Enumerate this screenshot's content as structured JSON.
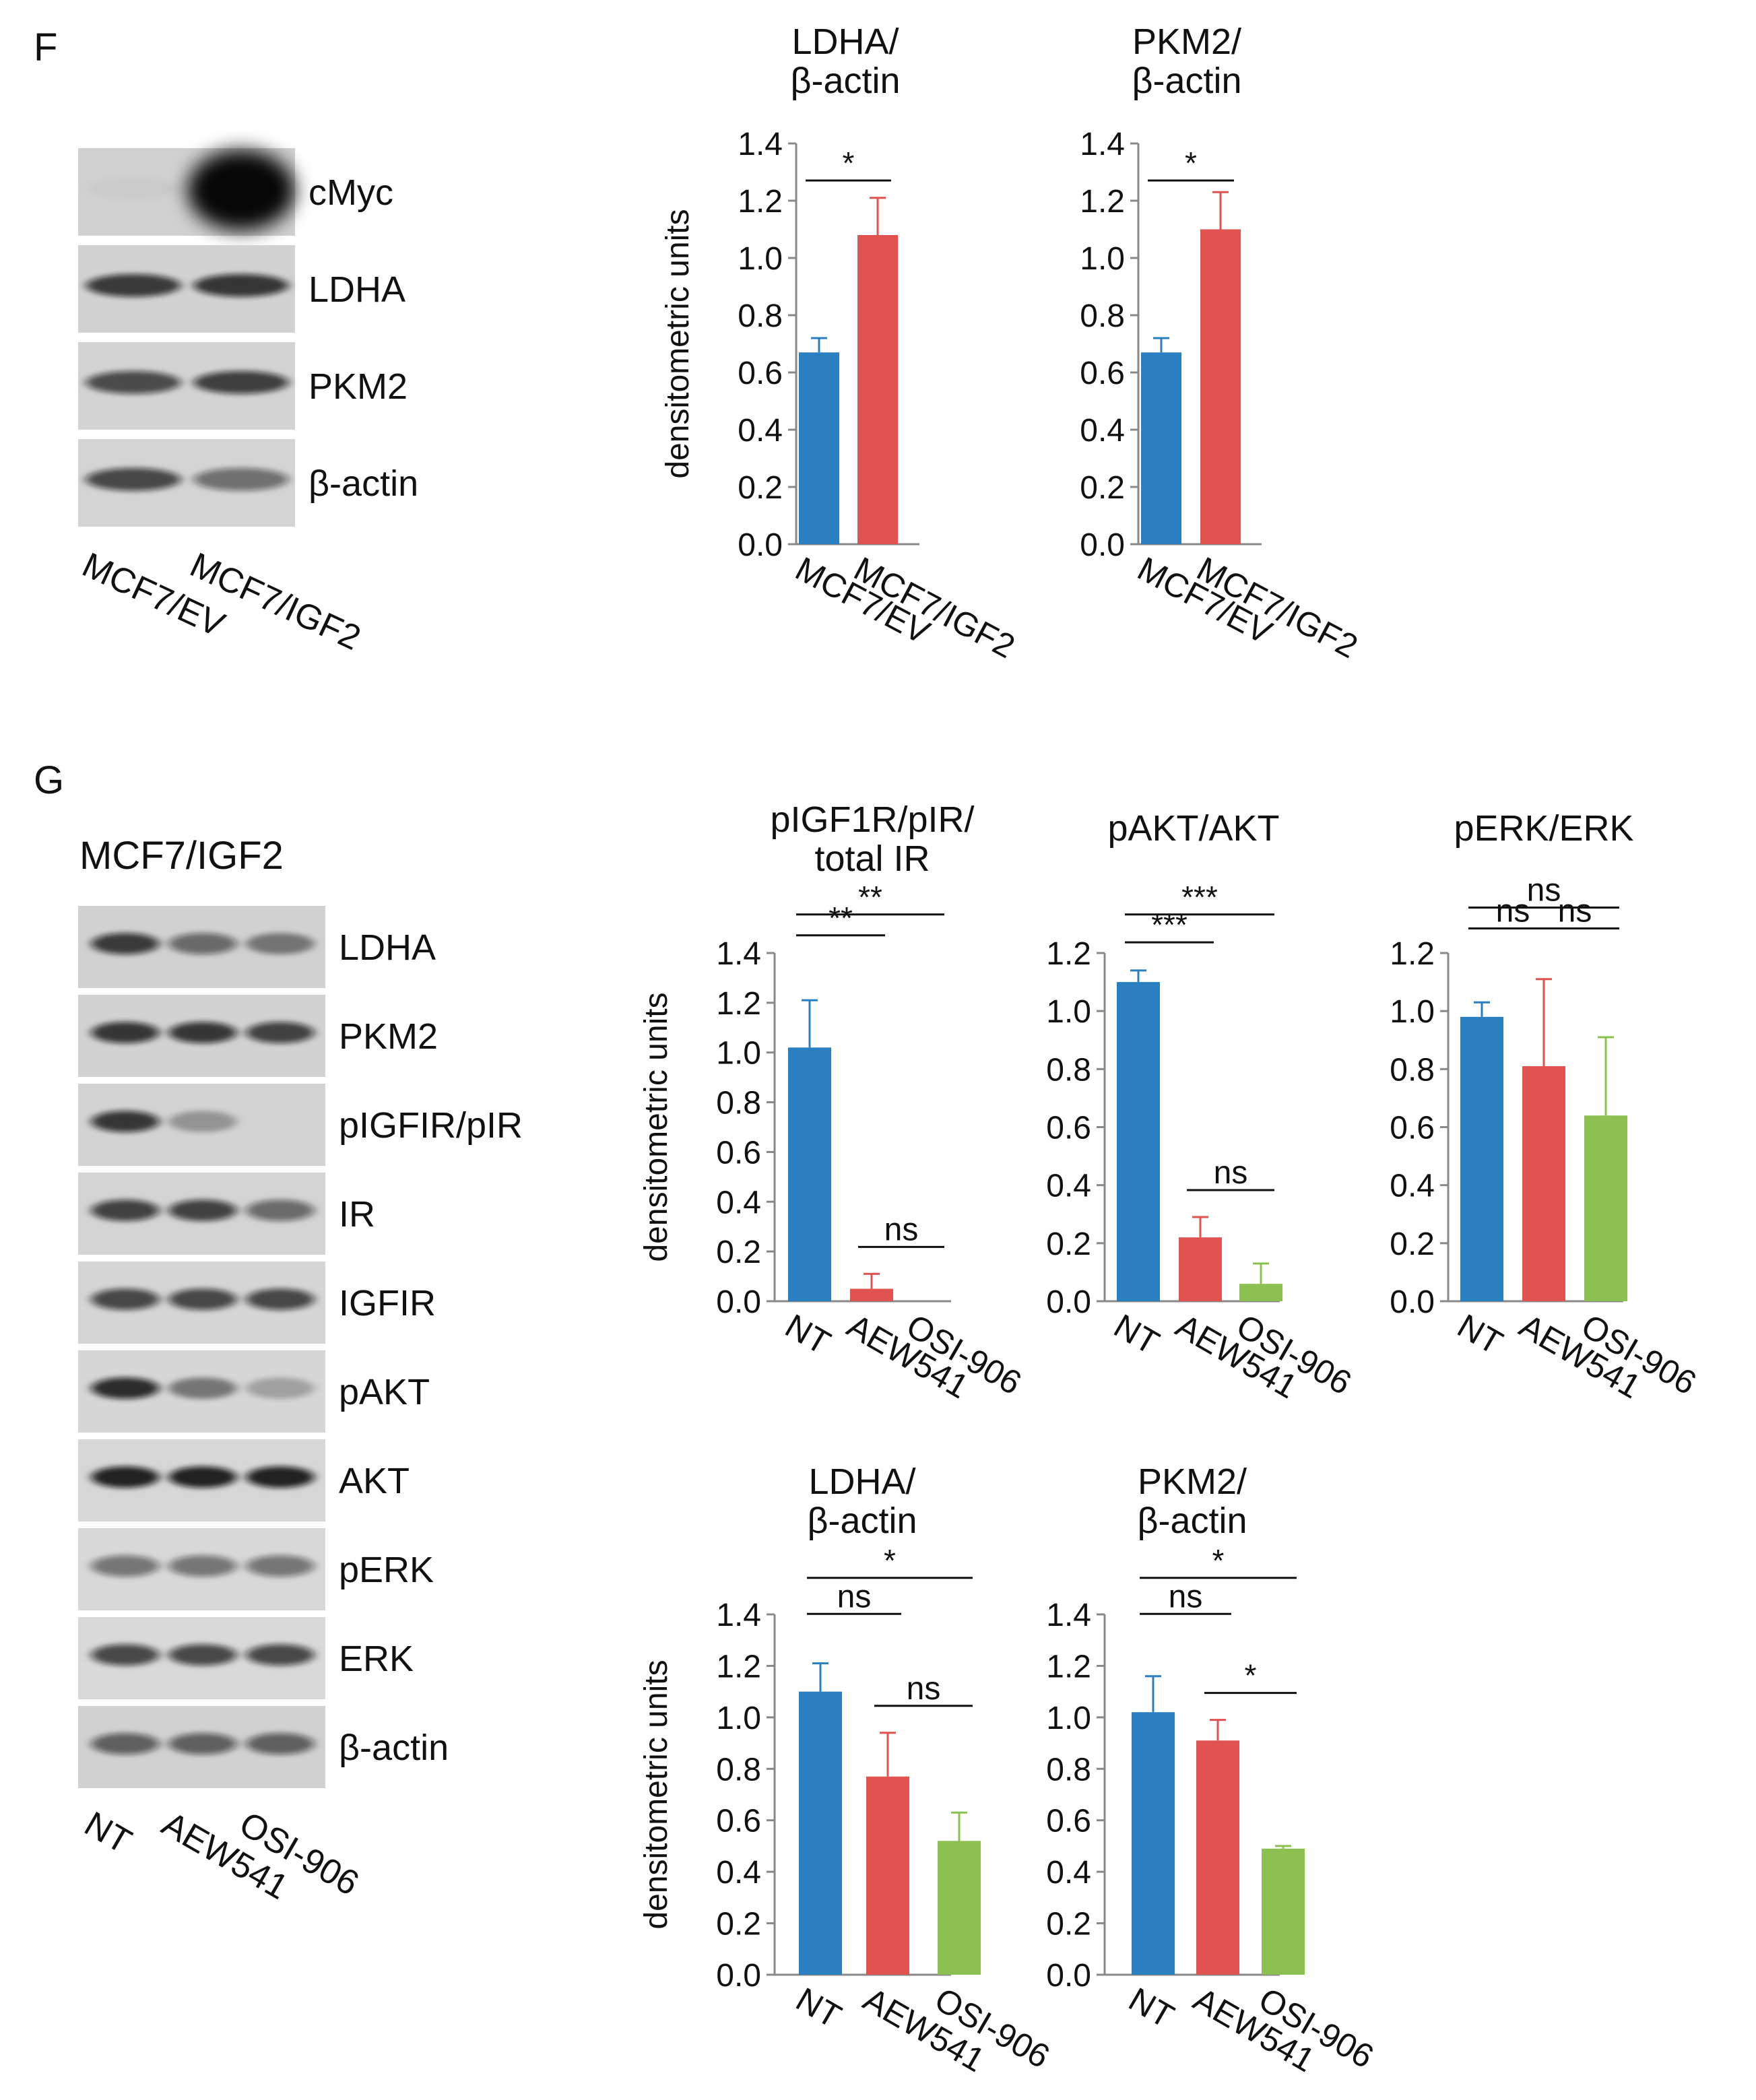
{
  "panels": {
    "F": {
      "label": "F",
      "blot": {
        "rows": [
          {
            "label": "cMyc",
            "intensity": [
              0.03,
              1.0
            ]
          },
          {
            "label": "LDHA",
            "intensity": [
              0.78,
              0.8
            ]
          },
          {
            "label": "PKM2",
            "intensity": [
              0.7,
              0.76
            ]
          },
          {
            "label": "β-actin",
            "intensity": [
              0.72,
              0.52
            ]
          }
        ],
        "lanes": [
          "MCF7/EV",
          "MCF7/IGF2"
        ]
      }
    },
    "G": {
      "label": "G",
      "blot": {
        "title": "MCF7/IGF2",
        "rows": [
          {
            "label": "LDHA",
            "intensity": [
              0.78,
              0.55,
              0.45
            ]
          },
          {
            "label": "PKM2",
            "intensity": [
              0.8,
              0.8,
              0.75
            ]
          },
          {
            "label": "pIGFIR/pIR",
            "intensity": [
              0.8,
              0.3,
              0.0
            ]
          },
          {
            "label": "IR",
            "intensity": [
              0.75,
              0.75,
              0.55
            ]
          },
          {
            "label": "IGFIR",
            "intensity": [
              0.72,
              0.72,
              0.72
            ]
          },
          {
            "label": "pAKT",
            "intensity": [
              0.85,
              0.45,
              0.25
            ]
          },
          {
            "label": "AKT",
            "intensity": [
              0.9,
              0.9,
              0.9
            ]
          },
          {
            "label": "pERK",
            "intensity": [
              0.5,
              0.5,
              0.5
            ]
          },
          {
            "label": "ERK",
            "intensity": [
              0.72,
              0.72,
              0.72
            ]
          },
          {
            "label": "β-actin",
            "intensity": [
              0.6,
              0.6,
              0.6
            ]
          }
        ],
        "lanes": [
          "NT",
          "AEW541",
          "OSI-906"
        ]
      }
    }
  },
  "colors": {
    "blue": "#2a7fc1",
    "red": "#e05350",
    "green": "#8cc152",
    "axis": "#888888"
  },
  "chart_data": [
    {
      "type": "bar",
      "panel": "F",
      "title_lines": [
        "LDHA/",
        "β-actin"
      ],
      "ylabel": "densitometric units",
      "categories": [
        "MCF7/EV",
        "MCF7/IGF2"
      ],
      "values": [
        0.67,
        1.08
      ],
      "errors": [
        0.05,
        0.13
      ],
      "ylim": [
        0,
        1.4
      ],
      "ticks": [
        "0.0",
        "0.2",
        "0.4",
        "0.6",
        "0.8",
        "1.0",
        "1.2",
        "1.4"
      ],
      "colors": [
        "blue",
        "red"
      ],
      "sig": [
        {
          "from": 0,
          "to": 1,
          "label": "*"
        }
      ]
    },
    {
      "type": "bar",
      "panel": "F",
      "title_lines": [
        "PKM2/",
        "β-actin"
      ],
      "ylabel": "",
      "categories": [
        "MCF7/EV",
        "MCF7/IGF2"
      ],
      "values": [
        0.67,
        1.1
      ],
      "errors": [
        0.05,
        0.13
      ],
      "ylim": [
        0,
        1.4
      ],
      "ticks": [
        "0.0",
        "0.2",
        "0.4",
        "0.6",
        "0.8",
        "1.0",
        "1.2",
        "1.4"
      ],
      "colors": [
        "blue",
        "red"
      ],
      "sig": [
        {
          "from": 0,
          "to": 1,
          "label": "*"
        }
      ]
    },
    {
      "type": "bar",
      "panel": "G",
      "title_lines": [
        "pIGF1R/pIR/",
        "total IR"
      ],
      "ylabel": "densitometric units",
      "categories": [
        "NT",
        "AEW541",
        "OSI-906"
      ],
      "values": [
        1.02,
        0.05,
        0.0
      ],
      "errors": [
        0.19,
        0.06,
        0.0
      ],
      "ylim": [
        0,
        1.4
      ],
      "ticks": [
        "0.0",
        "0.2",
        "0.4",
        "0.6",
        "0.8",
        "1.0",
        "1.2",
        "1.4"
      ],
      "colors": [
        "blue",
        "red",
        "green"
      ],
      "sig": [
        {
          "from": 0,
          "to": 1,
          "label": "**"
        },
        {
          "from": 0,
          "to": 2,
          "label": "**"
        },
        {
          "from": 1,
          "to": 2,
          "label": "ns"
        }
      ]
    },
    {
      "type": "bar",
      "panel": "G",
      "title_lines": [
        "pAKT/AKT"
      ],
      "ylabel": "",
      "categories": [
        "NT",
        "AEW541",
        "OSI-906"
      ],
      "values": [
        1.1,
        0.22,
        0.06
      ],
      "errors": [
        0.04,
        0.07,
        0.07
      ],
      "ylim": [
        0,
        1.2
      ],
      "ticks": [
        "0.0",
        "0.2",
        "0.4",
        "0.6",
        "0.8",
        "1.0",
        "1.2"
      ],
      "colors": [
        "blue",
        "red",
        "green"
      ],
      "sig": [
        {
          "from": 0,
          "to": 1,
          "label": "***"
        },
        {
          "from": 0,
          "to": 2,
          "label": "***"
        },
        {
          "from": 1,
          "to": 2,
          "label": "ns"
        }
      ]
    },
    {
      "type": "bar",
      "panel": "G",
      "title_lines": [
        "pERK/ERK"
      ],
      "ylabel": "",
      "categories": [
        "NT",
        "AEW541",
        "OSI-906"
      ],
      "values": [
        0.98,
        0.81,
        0.64
      ],
      "errors": [
        0.05,
        0.3,
        0.27
      ],
      "ylim": [
        0,
        1.2
      ],
      "ticks": [
        "0.0",
        "0.2",
        "0.4",
        "0.6",
        "0.8",
        "1.0",
        "1.2"
      ],
      "colors": [
        "blue",
        "red",
        "green"
      ],
      "sig": [
        {
          "from": 0,
          "to": 1,
          "label": "ns"
        },
        {
          "from": 0,
          "to": 2,
          "label": "ns"
        },
        {
          "from": 1,
          "to": 2,
          "label": "ns"
        }
      ]
    },
    {
      "type": "bar",
      "panel": "G",
      "title_lines": [
        "LDHA/",
        "β-actin"
      ],
      "ylabel": "densitometric units",
      "categories": [
        "NT",
        "AEW541",
        "OSI-906"
      ],
      "values": [
        1.1,
        0.77,
        0.52
      ],
      "errors": [
        0.11,
        0.17,
        0.11
      ],
      "ylim": [
        0,
        1.4
      ],
      "ticks": [
        "0.0",
        "0.2",
        "0.4",
        "0.6",
        "0.8",
        "1.0",
        "1.2",
        "1.4"
      ],
      "colors": [
        "blue",
        "red",
        "green"
      ],
      "sig": [
        {
          "from": 0,
          "to": 1,
          "label": "ns"
        },
        {
          "from": 0,
          "to": 2,
          "label": "*"
        },
        {
          "from": 1,
          "to": 2,
          "label": "ns"
        }
      ]
    },
    {
      "type": "bar",
      "panel": "G",
      "title_lines": [
        "PKM2/",
        "β-actin"
      ],
      "ylabel": "",
      "categories": [
        "NT",
        "AEW541",
        "OSI-906"
      ],
      "values": [
        1.02,
        0.91,
        0.49
      ],
      "errors": [
        0.14,
        0.08,
        0.01
      ],
      "ylim": [
        0,
        1.4
      ],
      "ticks": [
        "0.0",
        "0.2",
        "0.4",
        "0.6",
        "0.8",
        "1.0",
        "1.2",
        "1.4"
      ],
      "colors": [
        "blue",
        "red",
        "green"
      ],
      "sig": [
        {
          "from": 0,
          "to": 1,
          "label": "ns"
        },
        {
          "from": 0,
          "to": 2,
          "label": "*"
        },
        {
          "from": 1,
          "to": 2,
          "label": "*"
        }
      ]
    }
  ]
}
